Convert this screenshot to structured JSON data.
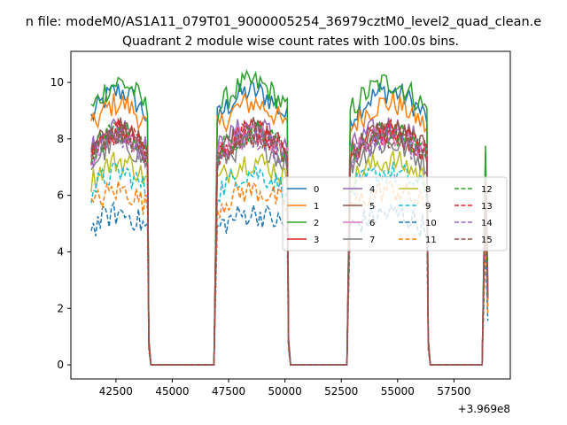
{
  "figure": {
    "suptitle": "n file: modeM0/AS1A11_079T01_9000005254_36979cztM0_level2_quad_clean.e"
  },
  "chart_data": {
    "type": "line",
    "title": "Quadrant 2 module wise count rates with 100.0s bins.",
    "xlabel": "",
    "ylabel": "",
    "x_offset_label": "+3.969e8",
    "xlim": [
      40500,
      60000
    ],
    "ylim": [
      -0.5,
      11.1
    ],
    "x_ticks": [
      42500,
      45000,
      47500,
      50000,
      52500,
      55000,
      57500
    ],
    "x_tick_labels": [
      "42500",
      "45000",
      "47500",
      "50000",
      "52500",
      "55000",
      "57500"
    ],
    "y_ticks": [
      0,
      2,
      4,
      6,
      8,
      10
    ],
    "y_tick_labels": [
      "0",
      "2",
      "4",
      "6",
      "8",
      "10"
    ],
    "grid": false,
    "legend_placement": "center-right",
    "legend_columns": 4,
    "on_segments": [
      [
        41400,
        43900
      ],
      [
        47000,
        50100
      ],
      [
        52900,
        56300
      ],
      [
        58900,
        59000
      ]
    ],
    "off_level": 0,
    "series": [
      {
        "name": "0",
        "color": "#1f77b4",
        "style": "solid",
        "level": 9.4
      },
      {
        "name": "1",
        "color": "#ff7f0e",
        "style": "solid",
        "level": 9.0
      },
      {
        "name": "2",
        "color": "#2ca02c",
        "style": "solid",
        "level": 9.7
      },
      {
        "name": "3",
        "color": "#d62728",
        "style": "solid",
        "level": 8.0
      },
      {
        "name": "4",
        "color": "#9467bd",
        "style": "solid",
        "level": 8.2
      },
      {
        "name": "5",
        "color": "#8c564b",
        "style": "solid",
        "level": 8.1
      },
      {
        "name": "6",
        "color": "#e377c2",
        "style": "solid",
        "level": 7.9
      },
      {
        "name": "7",
        "color": "#7f7f7f",
        "style": "solid",
        "level": 7.6
      },
      {
        "name": "8",
        "color": "#bcbd22",
        "style": "solid",
        "level": 7.0
      },
      {
        "name": "9",
        "color": "#17becf",
        "style": "dashed",
        "level": 6.6
      },
      {
        "name": "10",
        "color": "#1f77b4",
        "style": "dashed",
        "level": 5.2
      },
      {
        "name": "11",
        "color": "#ff7f0e",
        "style": "dashed",
        "level": 6.0
      },
      {
        "name": "12",
        "color": "#2ca02c",
        "style": "dashed",
        "level": 8.0
      },
      {
        "name": "13",
        "color": "#d62728",
        "style": "dashed",
        "level": 8.0
      },
      {
        "name": "14",
        "color": "#9467bd",
        "style": "dashed",
        "level": 7.8
      },
      {
        "name": "15",
        "color": "#8c564b",
        "style": "dashed",
        "level": 7.9
      }
    ]
  }
}
